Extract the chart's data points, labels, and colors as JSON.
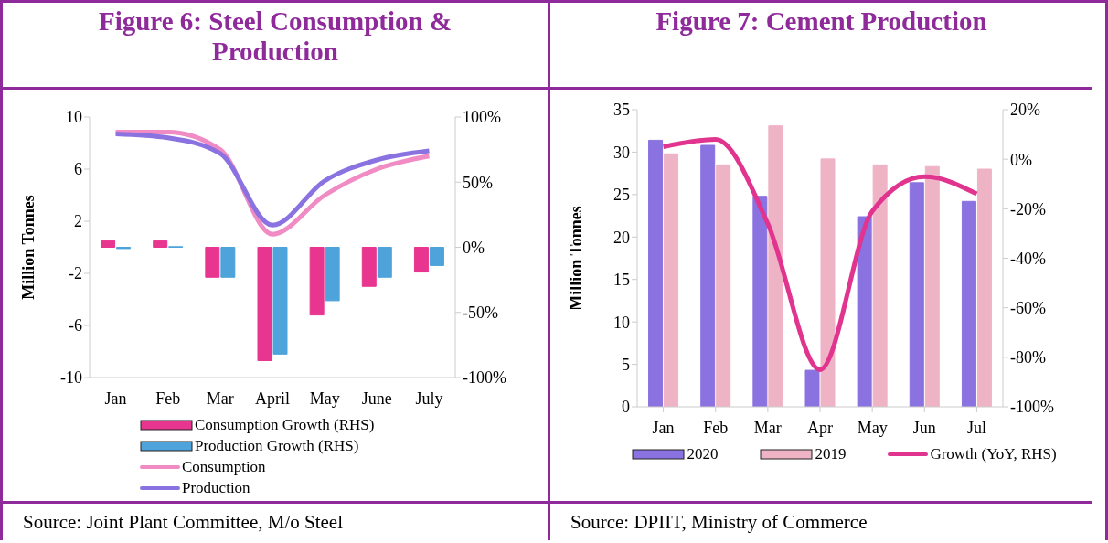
{
  "chart_data": [
    {
      "type": "bar",
      "title": "Figure 6: Steel Consumption & Production",
      "ylabel": "Million Tonnes",
      "categories": [
        "Jan",
        "Feb",
        "Mar",
        "April",
        "May",
        "June",
        "July"
      ],
      "series": [
        {
          "name": "Consumption Growth (RHS)",
          "axis": "y2",
          "color": "#e8358f",
          "values": [
            5,
            5,
            -23,
            -87,
            -52,
            -30,
            -19
          ]
        },
        {
          "name": "Production Growth (RHS)",
          "axis": "y2",
          "color": "#4fa3db",
          "values": [
            -1,
            0.5,
            -23,
            -82,
            -41,
            -23,
            -14
          ]
        },
        {
          "name": "Consumption",
          "type": "line",
          "color": "#f08bc3",
          "values": [
            8.85,
            8.85,
            7.5,
            1.0,
            4.0,
            6.0,
            7.0
          ]
        },
        {
          "name": "Production",
          "type": "line",
          "color": "#8a72e0",
          "values": [
            8.7,
            8.4,
            7.2,
            1.7,
            5.1,
            6.7,
            7.4
          ]
        }
      ],
      "ylim": [
        -10,
        10
      ],
      "yticks": [
        -10,
        -6,
        -2,
        2,
        6,
        10
      ],
      "y2lim": [
        -100,
        100
      ],
      "y2ticks": [
        {
          "value": -100,
          "label": "-100%"
        },
        {
          "value": -50,
          "label": "-50%"
        },
        {
          "value": 0,
          "label": "0%"
        },
        {
          "value": 50,
          "label": "50%"
        },
        {
          "value": 100,
          "label": "100%"
        }
      ],
      "grid": false,
      "legend": "bottom",
      "marker": "none",
      "annotations": [
        "Source: Joint Plant Committee, M/o Steel"
      ]
    },
    {
      "type": "bar",
      "title": "Figure 7: Cement Production",
      "ylabel": "Million Tonnes",
      "categories": [
        "Jan",
        "Feb",
        "Mar",
        "Apr",
        "May",
        "Jun",
        "Jul"
      ],
      "series": [
        {
          "name": "2020",
          "color": "#8a72e0",
          "values": [
            31.4,
            30.8,
            24.8,
            4.3,
            22.4,
            26.4,
            24.2
          ]
        },
        {
          "name": "2019",
          "color": "#efb3c6",
          "values": [
            29.8,
            28.5,
            33.1,
            29.2,
            28.5,
            28.3,
            28.0
          ]
        },
        {
          "name": "Growth (YoY, RHS)",
          "type": "line",
          "axis": "y2",
          "color": "#e0348e",
          "values": [
            5,
            8,
            -26,
            -85,
            -21,
            -7,
            -14
          ]
        }
      ],
      "ylim": [
        0,
        35
      ],
      "yticks": [
        0,
        5,
        10,
        15,
        20,
        25,
        30,
        35
      ],
      "y2lim": [
        -100,
        20
      ],
      "y2ticks": [
        {
          "value": -100,
          "label": "-100%"
        },
        {
          "value": -80,
          "label": "-80%"
        },
        {
          "value": -60,
          "label": "-60%"
        },
        {
          "value": -40,
          "label": "-40%"
        },
        {
          "value": -20,
          "label": "-20%"
        },
        {
          "value": 0,
          "label": "0%"
        },
        {
          "value": 20,
          "label": "20%"
        }
      ],
      "grid": false,
      "legend": "bottom",
      "marker": "none",
      "annotations": [
        "Source: DPIIT, Ministry of Commerce"
      ]
    }
  ]
}
